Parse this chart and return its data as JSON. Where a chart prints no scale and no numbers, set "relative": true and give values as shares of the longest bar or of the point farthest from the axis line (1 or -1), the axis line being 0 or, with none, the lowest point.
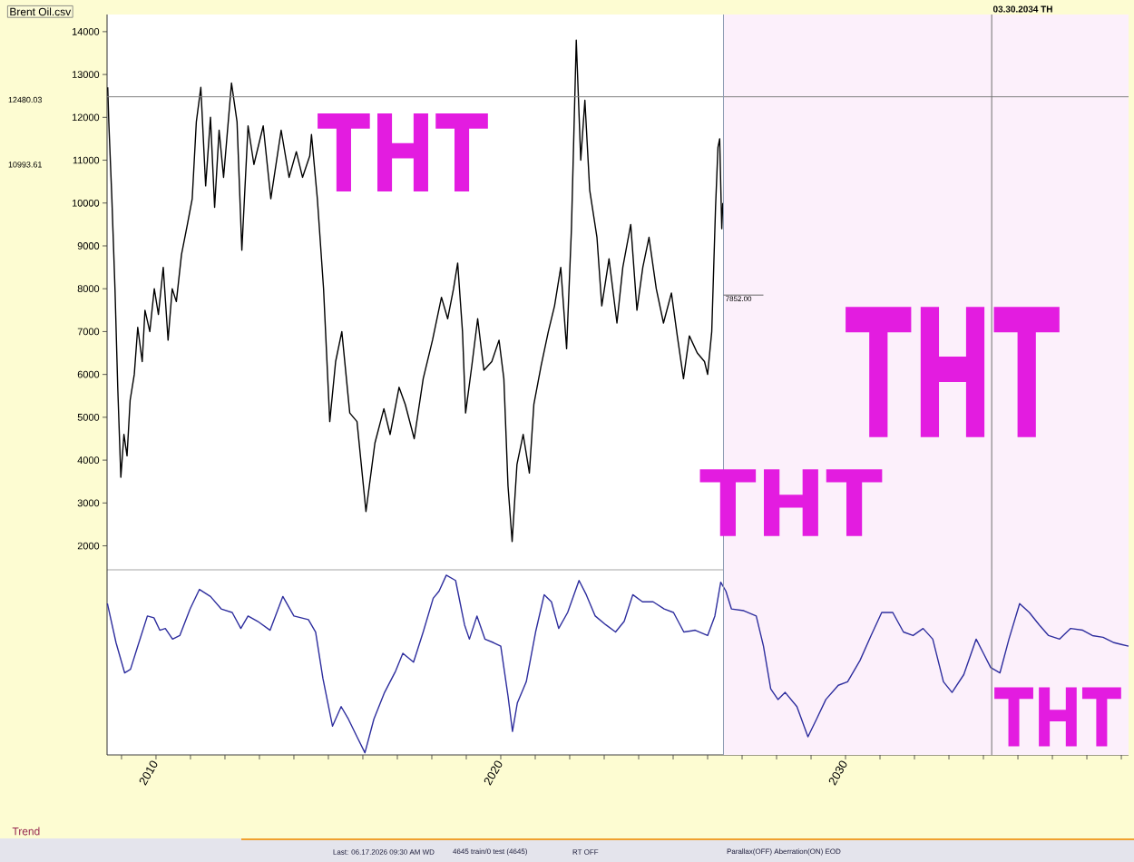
{
  "chart_data": [
    {
      "type": "line",
      "title": "Brent Oil.csv",
      "x": [
        2008.6,
        2008.63,
        2008.72,
        2008.81,
        2008.89,
        2008.98,
        2009.07,
        2009.16,
        2009.25,
        2009.37,
        2009.47,
        2009.6,
        2009.68,
        2009.82,
        2009.95,
        2010.07,
        2010.21,
        2010.35,
        2010.47,
        2010.59,
        2010.74,
        2010.91,
        2011.05,
        2011.17,
        2011.3,
        2011.44,
        2011.58,
        2011.7,
        2011.83,
        2011.96,
        2012.19,
        2012.35,
        2012.49,
        2012.67,
        2012.84,
        2013.11,
        2013.33,
        2013.63,
        2013.86,
        2014.07,
        2014.25,
        2014.46,
        2014.51,
        2014.68,
        2014.86,
        2015.04,
        2015.21,
        2015.39,
        2015.62,
        2015.83,
        2016.09,
        2016.35,
        2016.61,
        2016.79,
        2017.05,
        2017.23,
        2017.49,
        2017.75,
        2018.02,
        2018.28,
        2018.46,
        2018.63,
        2018.75,
        2018.89,
        2018.98,
        2019.16,
        2019.33,
        2019.51,
        2019.74,
        2019.95,
        2020.09,
        2020.21,
        2020.33,
        2020.47,
        2020.65,
        2020.83,
        2020.96,
        2021.17,
        2021.38,
        2021.56,
        2021.74,
        2021.91,
        2022.05,
        2022.19,
        2022.32,
        2022.44,
        2022.58,
        2022.79,
        2022.93,
        2023.14,
        2023.37,
        2023.54,
        2023.77,
        2023.95,
        2024.12,
        2024.3,
        2024.51,
        2024.72,
        2024.95,
        2025.12,
        2025.3,
        2025.47,
        2025.7,
        2025.91,
        2026.0,
        2026.12,
        2026.23,
        2026.3,
        2026.35,
        2026.41,
        2026.44
      ],
      "series": [
        {
          "color": "#000000",
          "values": [
            12700,
            11900,
            10100,
            8000,
            5700,
            3600,
            4600,
            4100,
            5400,
            6000,
            7100,
            6300,
            7500,
            7000,
            8000,
            7400,
            8500,
            6800,
            8000,
            7700,
            8800,
            9500,
            10100,
            11900,
            12700,
            10400,
            12000,
            9900,
            11700,
            10600,
            12800,
            11900,
            8900,
            11800,
            10900,
            11800,
            10100,
            11700,
            10600,
            11200,
            10600,
            11100,
            11600,
            10100,
            8000,
            4900,
            6300,
            7000,
            5100,
            4900,
            2800,
            4400,
            5200,
            4600,
            5700,
            5300,
            4500,
            5900,
            6800,
            7800,
            7300,
            8000,
            8600,
            7000,
            5100,
            6200,
            7300,
            6100,
            6300,
            6800,
            5900,
            3400,
            2100,
            3900,
            4600,
            3700,
            5300,
            6200,
            7000,
            7600,
            8500,
            6600,
            9400,
            13800,
            11000,
            12400,
            10300,
            9200,
            7600,
            8700,
            7200,
            8500,
            9500,
            7500,
            8500,
            9200,
            8000,
            7200,
            7900,
            6900,
            5900,
            6900,
            6500,
            6300,
            6000,
            7000,
            9900,
            11300,
            11500,
            9400,
            10000
          ]
        }
      ],
      "xlim": [
        2008.58,
        2038.21
      ],
      "ylim": [
        1440,
        14400
      ],
      "yticks": [
        2000,
        3000,
        4000,
        5000,
        6000,
        7000,
        8000,
        9000,
        10000,
        11000,
        12000,
        13000,
        14000
      ],
      "tick_labels": "y",
      "ref_lines": [
        {
          "axis": "y",
          "value": 12480.03,
          "color": "#808080"
        },
        {
          "axis": "x",
          "value": 2026.46,
          "color": "#8e9cb4"
        },
        {
          "axis": "x",
          "value": 2034.24,
          "label": "03.30.2034 TH",
          "color": "#6e6e6e"
        }
      ],
      "bands": [
        {
          "axis": "x",
          "from": 2026.46,
          "to": 2038.21,
          "color": "#fcf0fb"
        }
      ],
      "annotations": [
        "THT",
        "THT",
        "THT",
        "12480.03",
        "10993.61",
        {
          "text": "7852.00",
          "x": 2026.46,
          "y": 7852
        }
      ]
    },
    {
      "type": "line",
      "relative": true,
      "x": [
        2008.59,
        2008.84,
        2009.09,
        2009.26,
        2009.47,
        2009.75,
        2009.94,
        2010.11,
        2010.27,
        2010.48,
        2010.69,
        2010.99,
        2011.26,
        2011.58,
        2011.89,
        2012.21,
        2012.46,
        2012.67,
        2012.95,
        2013.31,
        2013.68,
        2014.0,
        2014.42,
        2014.63,
        2014.84,
        2015.12,
        2015.37,
        2015.58,
        2015.83,
        2016.06,
        2016.32,
        2016.63,
        2016.95,
        2017.16,
        2017.47,
        2017.75,
        2018.04,
        2018.21,
        2018.42,
        2018.69,
        2018.95,
        2019.09,
        2019.31,
        2019.54,
        2019.79,
        2020.0,
        2020.21,
        2020.34,
        2020.48,
        2020.74,
        2021.01,
        2021.26,
        2021.47,
        2021.68,
        2021.94,
        2022.27,
        2022.48,
        2022.74,
        2023.05,
        2023.33,
        2023.58,
        2023.83,
        2024.11,
        2024.42,
        2024.74,
        2025.01,
        2025.31,
        2025.64,
        2026.0,
        2026.21,
        2026.38,
        2026.53,
        2026.69,
        2027.05,
        2027.41,
        2027.62,
        2027.83,
        2028.04,
        2028.25,
        2028.59,
        2028.91,
        2029.16,
        2029.43,
        2029.79,
        2030.06,
        2030.42,
        2030.74,
        2031.05,
        2031.37,
        2031.68,
        2031.96,
        2032.25,
        2032.53,
        2032.84,
        2033.09,
        2033.43,
        2033.79,
        2034.0,
        2034.21,
        2034.48,
        2034.74,
        2035.05,
        2035.33,
        2035.62,
        2035.89,
        2036.21,
        2036.53,
        2036.88,
        2037.16,
        2037.47,
        2037.79,
        2038.0,
        2038.21
      ],
      "series": [
        {
          "color": "#2e2e9e",
          "values": [
            0.84,
            0.62,
            0.45,
            0.47,
            0.6,
            0.77,
            0.76,
            0.69,
            0.7,
            0.64,
            0.66,
            0.81,
            0.92,
            0.88,
            0.81,
            0.79,
            0.7,
            0.77,
            0.74,
            0.69,
            0.88,
            0.77,
            0.75,
            0.68,
            0.42,
            0.15,
            0.26,
            0.19,
            0.09,
            0,
            0.19,
            0.34,
            0.46,
            0.56,
            0.51,
            0.68,
            0.87,
            0.91,
            1,
            0.97,
            0.72,
            0.64,
            0.77,
            0.64,
            0.62,
            0.6,
            0.32,
            0.12,
            0.28,
            0.4,
            0.68,
            0.89,
            0.85,
            0.7,
            0.79,
            0.97,
            0.89,
            0.77,
            0.72,
            0.68,
            0.74,
            0.89,
            0.85,
            0.85,
            0.81,
            0.79,
            0.68,
            0.69,
            0.66,
            0.77,
            0.96,
            0.91,
            0.81,
            0.8,
            0.77,
            0.6,
            0.36,
            0.3,
            0.34,
            0.26,
            0.09,
            0.19,
            0.3,
            0.38,
            0.4,
            0.52,
            0.66,
            0.79,
            0.79,
            0.68,
            0.66,
            0.7,
            0.64,
            0.4,
            0.34,
            0.44,
            0.64,
            0.56,
            0.48,
            0.45,
            0.64,
            0.84,
            0.79,
            0.72,
            0.66,
            0.64,
            0.7,
            0.69,
            0.66,
            0.65,
            0.62,
            0.61,
            0.6
          ]
        }
      ],
      "xlim": [
        2008.58,
        2038.21
      ],
      "xticks": [
        {
          "value": 2009,
          "label": null
        },
        2010,
        {
          "value": 2011,
          "label": null
        },
        {
          "value": 2012,
          "label": null
        },
        {
          "value": 2013,
          "label": null
        },
        {
          "value": 2014,
          "label": null
        },
        {
          "value": 2015,
          "label": null
        },
        {
          "value": 2016,
          "label": null
        },
        {
          "value": 2017,
          "label": null
        },
        {
          "value": 2018,
          "label": null
        },
        {
          "value": 2019,
          "label": null
        },
        2020,
        {
          "value": 2021,
          "label": null
        },
        {
          "value": 2022,
          "label": null
        },
        {
          "value": 2023,
          "label": null
        },
        {
          "value": 2024,
          "label": null
        },
        {
          "value": 2025,
          "label": null
        },
        {
          "value": 2026,
          "label": null
        },
        {
          "value": 2027,
          "label": null
        },
        {
          "value": 2028,
          "label": null
        },
        {
          "value": 2029,
          "label": null
        },
        2030,
        {
          "value": 2031,
          "label": null
        },
        {
          "value": 2032,
          "label": null
        },
        {
          "value": 2033,
          "label": null
        },
        {
          "value": 2034,
          "label": null
        },
        {
          "value": 2035,
          "label": null
        },
        {
          "value": 2036,
          "label": null
        },
        {
          "value": 2037,
          "label": null
        },
        {
          "value": 2038,
          "label": null
        }
      ],
      "tick_labels": "x",
      "ref_lines": [
        {
          "axis": "x",
          "value": 2026.46,
          "color": "#8e9cb4"
        },
        {
          "axis": "x",
          "value": 2034.24,
          "color": "#6e6e6e"
        }
      ],
      "bands": [
        {
          "axis": "x",
          "from": 2026.46,
          "to": 2038.21,
          "color": "#fcf0fb"
        }
      ],
      "annotations": [
        "Trend",
        "THT",
        "Last: 06.17.2026 09:30 AM WD",
        "4645 train/0 test (4645)",
        "RT OFF",
        "Parallax(OFF) Aberration(ON) EOD"
      ]
    }
  ]
}
